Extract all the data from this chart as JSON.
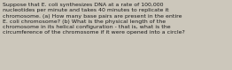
{
  "text": "Suppose that E. coli synthesizes DNA at a rate of 100,000\nnucleotides per minute and takes 40 minutes to replicate it\nchromosome. (a) How many base pairs are present in the entire\nE. coli chromosome? (b) What is the physical length of the\nchromosome in its helical configuration - that is, what is the\ncircumference of the chromosome if it were opened into a circle?",
  "font_size": 4.5,
  "text_color": "#1a1a1a",
  "background_color": "#ccc7bb",
  "fig_width": 2.62,
  "fig_height": 0.79,
  "dpi": 100
}
